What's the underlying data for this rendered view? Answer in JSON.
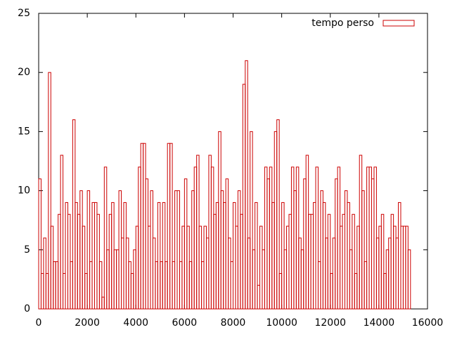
{
  "chart_data": {
    "type": "bar",
    "x": [
      0,
      100,
      200,
      300,
      400,
      500,
      600,
      700,
      800,
      900,
      1000,
      1100,
      1200,
      1300,
      1400,
      1500,
      1600,
      1700,
      1800,
      1900,
      2000,
      2100,
      2200,
      2300,
      2400,
      2500,
      2600,
      2700,
      2800,
      2900,
      3000,
      3100,
      3200,
      3300,
      3400,
      3500,
      3600,
      3700,
      3800,
      3900,
      4000,
      4100,
      4200,
      4300,
      4400,
      4500,
      4600,
      4700,
      4800,
      4900,
      5000,
      5100,
      5200,
      5300,
      5400,
      5500,
      5600,
      5700,
      5800,
      5900,
      6000,
      6100,
      6200,
      6300,
      6400,
      6500,
      6600,
      6700,
      6800,
      6900,
      7000,
      7100,
      7200,
      7300,
      7400,
      7500,
      7600,
      7700,
      7800,
      7900,
      8000,
      8100,
      8200,
      8300,
      8400,
      8500,
      8600,
      8700,
      8800,
      8900,
      9000,
      9100,
      9200,
      9300,
      9400,
      9500,
      9600,
      9700,
      9800,
      9900,
      10000,
      10100,
      10200,
      10300,
      10400,
      10500,
      10600,
      10700,
      10800,
      10900,
      11000,
      11100,
      11200,
      11300,
      11400,
      11500,
      11600,
      11700,
      11800,
      11900,
      12000,
      12100,
      12200,
      12300,
      12400,
      12500,
      12600,
      12700,
      12800,
      12900,
      13000,
      13100,
      13200,
      13300,
      13400,
      13500,
      13600,
      13700,
      13800,
      13900,
      14000,
      14100,
      14200,
      14300,
      14400,
      14500,
      14600,
      14700,
      14800,
      14900,
      15000,
      15100,
      15200
    ],
    "series": [
      {
        "name": "tempo perso",
        "color": "#cc0000",
        "values": [
          11,
          3,
          6,
          3,
          20,
          7,
          4,
          4,
          8,
          13,
          3,
          9,
          8,
          4,
          16,
          9,
          8,
          10,
          7,
          3,
          10,
          4,
          9,
          9,
          8,
          4,
          1,
          12,
          5,
          8,
          9,
          5,
          5,
          10,
          6,
          9,
          6,
          4,
          3,
          5,
          7,
          12,
          14,
          14,
          11,
          7,
          10,
          6,
          4,
          9,
          4,
          9,
          4,
          14,
          14,
          4,
          10,
          10,
          4,
          7,
          11,
          7,
          4,
          10,
          12,
          13,
          7,
          4,
          7,
          6,
          13,
          12,
          8,
          9,
          15,
          10,
          9,
          11,
          6,
          4,
          9,
          7,
          10,
          8,
          19,
          21,
          6,
          15,
          5,
          9,
          2,
          7,
          5,
          12,
          11,
          12,
          9,
          15,
          16,
          3,
          9,
          5,
          7,
          8,
          12,
          10,
          12,
          6,
          5,
          11,
          13,
          8,
          8,
          9,
          12,
          4,
          10,
          9,
          6,
          8,
          3,
          6,
          11,
          12,
          7,
          8,
          10,
          9,
          5,
          8,
          3,
          7,
          13,
          10,
          4,
          12,
          12,
          11,
          12,
          6,
          7,
          8,
          3,
          5,
          6,
          8,
          7,
          6,
          9,
          7,
          7,
          7,
          5
        ]
      }
    ],
    "xlim": [
      0,
      16000
    ],
    "xticks": [
      0,
      2000,
      4000,
      6000,
      8000,
      10000,
      12000,
      14000,
      16000
    ],
    "ylim": [
      0,
      25
    ],
    "yticks": [
      0,
      5,
      10,
      15,
      20,
      25
    ],
    "legend": "top-right"
  }
}
